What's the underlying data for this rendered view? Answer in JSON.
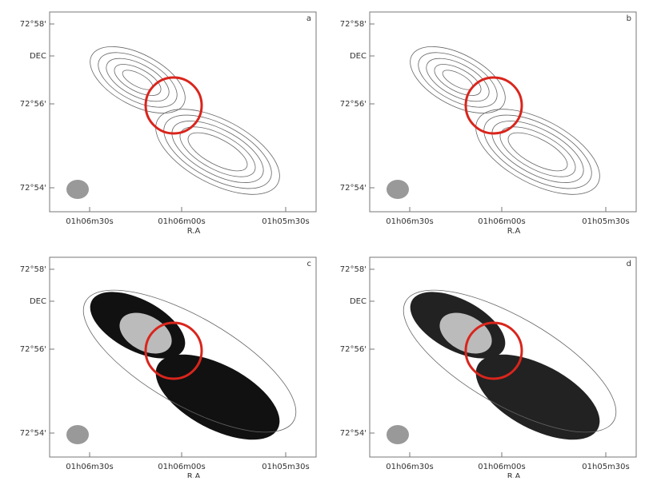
{
  "panels": [
    {
      "label": "a",
      "y_ticks": [
        "72°58'",
        "DEC",
        "72°56'",
        "72°54'"
      ],
      "x_ticks": [
        "01h06m30s",
        "01h06m00s",
        "01h05m30s"
      ],
      "x_label": "R.A"
    },
    {
      "label": "b",
      "y_ticks": [
        "72°58'",
        "DEC",
        "72°56'",
        "72°54'"
      ],
      "x_ticks": [
        "01h06m30s",
        "01h06m00s",
        "01h05m30s"
      ],
      "x_label": "R.A"
    },
    {
      "label": "c",
      "y_ticks": [
        "72°58'",
        "DEC",
        "72°56'",
        "72°54'"
      ],
      "x_ticks": [
        "01h06m30s",
        "01h06m00s",
        "01h05m30s"
      ],
      "x_label": "R.A"
    },
    {
      "label": "d",
      "y_ticks": [
        "72°58'",
        "DEC",
        "72°56'",
        "72°54'"
      ],
      "x_ticks": [
        "01h06m30s",
        "01h06m00s",
        "01h05m30s"
      ],
      "x_label": "R.A"
    }
  ]
}
